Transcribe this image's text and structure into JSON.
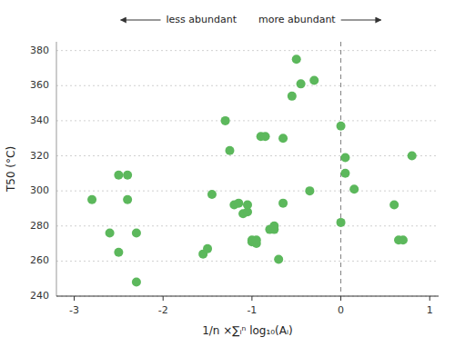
{
  "chart_data": {
    "type": "scatter",
    "x": [
      -2.8,
      -2.6,
      -2.5,
      -2.5,
      -2.4,
      -2.4,
      -2.3,
      -2.3,
      -1.55,
      -1.5,
      -1.45,
      -1.3,
      -1.25,
      -1.2,
      -1.15,
      -1.1,
      -1.05,
      -1.05,
      -1.0,
      -1.0,
      -0.95,
      -0.95,
      -0.9,
      -0.85,
      -0.8,
      -0.75,
      -0.75,
      -0.7,
      -0.65,
      -0.65,
      -0.55,
      -0.5,
      -0.45,
      -0.35,
      -0.3,
      0.0,
      0.0,
      0.05,
      0.05,
      0.15,
      0.6,
      0.65,
      0.7,
      0.8
    ],
    "y": [
      295,
      276,
      265,
      309,
      309,
      295,
      276,
      248,
      264,
      267,
      298,
      340,
      323,
      292,
      293,
      287,
      288,
      292,
      271,
      272,
      270,
      272,
      331,
      331,
      278,
      278,
      280,
      261,
      293,
      330,
      354,
      375,
      361,
      300,
      363,
      337,
      282,
      319,
      310,
      301,
      292,
      272,
      272,
      320
    ],
    "color": "#5cb85c",
    "xlim": [
      -3.2,
      1.1
    ],
    "ylim": [
      240,
      385
    ],
    "xticks": [
      -3,
      -2,
      -1,
      0,
      1
    ],
    "yticks": [
      240,
      260,
      280,
      300,
      320,
      340,
      360,
      380
    ],
    "grid": true,
    "xlabel": "1/n ×∑ᵢⁿ log₁₀(Aᵢ)",
    "ylabel": "T50 (°C)",
    "vline_x": 0,
    "annotations": [
      "less abundant",
      "more abundant"
    ]
  }
}
